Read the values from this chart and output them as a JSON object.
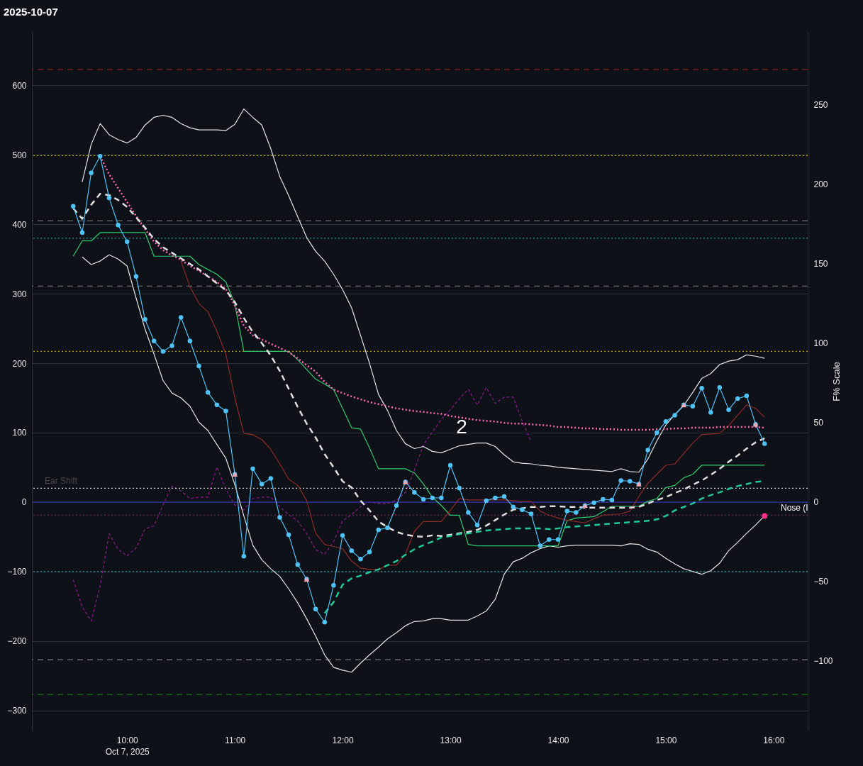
{
  "chart_data": {
    "type": "line",
    "title": "2025-10-07",
    "y2label": "F% Scale",
    "x": [
      "2025-10-07T09:30",
      "2025-10-07T09:35",
      "2025-10-07T09:40",
      "2025-10-07T09:45",
      "2025-10-07T09:50",
      "2025-10-07T09:55",
      "2025-10-07T10:00",
      "2025-10-07T10:05",
      "2025-10-07T10:10",
      "2025-10-07T10:15",
      "2025-10-07T10:20",
      "2025-10-07T10:25",
      "2025-10-07T10:30",
      "2025-10-07T10:35",
      "2025-10-07T10:40",
      "2025-10-07T10:45",
      "2025-10-07T10:50",
      "2025-10-07T10:55",
      "2025-10-07T11:00",
      "2025-10-07T11:05",
      "2025-10-07T11:10",
      "2025-10-07T11:15",
      "2025-10-07T11:20",
      "2025-10-07T11:25",
      "2025-10-07T11:30",
      "2025-10-07T11:35",
      "2025-10-07T11:40",
      "2025-10-07T11:45",
      "2025-10-07T11:50",
      "2025-10-07T11:55",
      "2025-10-07T12:00",
      "2025-10-07T12:05",
      "2025-10-07T12:10",
      "2025-10-07T12:15",
      "2025-10-07T12:20",
      "2025-10-07T12:25",
      "2025-10-07T12:30",
      "2025-10-07T12:35",
      "2025-10-07T12:40",
      "2025-10-07T12:45",
      "2025-10-07T12:50",
      "2025-10-07T12:55",
      "2025-10-07T13:00",
      "2025-10-07T13:05",
      "2025-10-07T13:10",
      "2025-10-07T13:15",
      "2025-10-07T13:20",
      "2025-10-07T13:25",
      "2025-10-07T13:30",
      "2025-10-07T13:35",
      "2025-10-07T13:40",
      "2025-10-07T13:45",
      "2025-10-07T13:50",
      "2025-10-07T13:55",
      "2025-10-07T14:00",
      "2025-10-07T14:05",
      "2025-10-07T14:10",
      "2025-10-07T14:15",
      "2025-10-07T14:20",
      "2025-10-07T14:25",
      "2025-10-07T14:30",
      "2025-10-07T14:35",
      "2025-10-07T14:40",
      "2025-10-07T14:45",
      "2025-10-07T14:50",
      "2025-10-07T14:55",
      "2025-10-07T15:00",
      "2025-10-07T15:05",
      "2025-10-07T15:10",
      "2025-10-07T15:15",
      "2025-10-07T15:20",
      "2025-10-07T15:25",
      "2025-10-07T15:30",
      "2025-10-07T15:35",
      "2025-10-07T15:40",
      "2025-10-07T15:45",
      "2025-10-07T15:50",
      "2025-10-07T15:55"
    ],
    "xlim": [
      "2025-10-07T09:07",
      "2025-10-07T16:19"
    ],
    "xticks": [
      {
        "value": "2025-10-07T10:00",
        "label": "10:00\nOct 7, 2025"
      },
      {
        "value": "2025-10-07T11:00",
        "label": "11:00"
      },
      {
        "value": "2025-10-07T12:00",
        "label": "12:00"
      },
      {
        "value": "2025-10-07T13:00",
        "label": "13:00"
      },
      {
        "value": "2025-10-07T14:00",
        "label": "14:00"
      },
      {
        "value": "2025-10-07T15:00",
        "label": "15:00"
      },
      {
        "value": "2025-10-07T16:00",
        "label": "16:00"
      }
    ],
    "ylim": [
      -329,
      677
    ],
    "yticks": [
      -300,
      -200,
      -100,
      0,
      100,
      200,
      300,
      400,
      500,
      600
    ],
    "y2lim": [
      -144,
      296
    ],
    "y2ticks": [
      -100,
      -50,
      0,
      50,
      100,
      150,
      200,
      250
    ],
    "grid": "y",
    "series": [
      {
        "color": "#e6e6e6",
        "values": [
          null,
          461,
          515,
          545,
          529,
          522,
          517,
          525,
          543,
          554,
          557,
          554,
          545,
          539,
          536,
          536,
          536,
          535,
          544,
          566,
          554,
          543,
          509,
          469,
          441,
          411,
          381,
          361,
          347,
          328,
          306,
          280,
          240,
          200,
          155,
          132,
          103,
          84,
          77,
          80,
          73,
          71,
          76,
          81,
          83,
          85,
          85,
          80,
          68,
          58,
          56,
          55,
          53,
          52,
          50,
          49,
          48,
          47,
          46,
          45,
          44,
          48,
          44,
          43,
          62,
          88,
          111,
          126,
          139,
          158,
          178,
          185,
          198,
          203,
          205,
          212,
          210,
          207
        ]
      },
      {
        "color": "#e6e6e6",
        "values": [
          null,
          353,
          342,
          347,
          356,
          350,
          340,
          294,
          249,
          213,
          175,
          157,
          150,
          138,
          115,
          103,
          83,
          63,
          25,
          -20,
          -62,
          -83,
          -96,
          -107,
          -125,
          -145,
          -168,
          -193,
          -220,
          -238,
          -242,
          -245,
          -232,
          -220,
          -209,
          -197,
          -188,
          -178,
          -172,
          -171,
          -168,
          -168,
          -170,
          -170,
          -170,
          -164,
          -157,
          -140,
          -104,
          -86,
          -81,
          -73,
          -67,
          -63,
          -65,
          -63,
          -62,
          -62,
          -62,
          -62,
          -62,
          -63,
          -60,
          -61,
          -68,
          -72,
          -81,
          -89,
          -96,
          -100,
          -104,
          -99,
          -88,
          -70,
          -58,
          -45,
          -33,
          -20
        ]
      },
      {
        "color": "#8a1c8c",
        "axis": "y2",
        "line_style": "dashed",
        "values": [
          -49,
          -66,
          -75,
          -53,
          -20,
          -30,
          -34,
          -29,
          -17,
          -15,
          -2,
          10,
          7,
          2,
          3,
          3,
          22,
          8,
          -2,
          -5,
          2,
          3,
          3,
          -3,
          -8,
          -12,
          -20,
          -30,
          -33,
          -25,
          -12,
          -8,
          -3,
          0,
          -1,
          -1,
          1,
          6,
          20,
          36,
          44,
          52,
          58,
          65,
          71,
          61,
          72,
          62,
          66,
          66,
          51,
          38,
          null,
          null,
          null,
          null,
          null,
          null,
          null,
          null,
          null,
          null,
          null,
          null,
          null,
          null,
          null,
          null,
          null,
          null,
          null,
          null,
          null,
          null,
          null,
          null,
          null,
          null
        ]
      },
      {
        "color": "#2ecc71",
        "values": [
          354,
          376,
          376,
          388,
          388,
          388,
          388,
          388,
          388,
          354,
          354,
          354,
          354,
          354,
          342,
          335,
          328,
          317,
          285,
          217,
          217,
          217,
          217,
          217,
          217,
          205,
          191,
          177,
          170,
          162,
          135,
          107,
          105,
          78,
          48,
          48,
          48,
          48,
          42,
          26,
          7,
          -5,
          -19,
          -19,
          -61,
          -63,
          -63,
          -63,
          -63,
          -63,
          -63,
          -63,
          -63,
          -63,
          -63,
          -27,
          -23,
          -22,
          -21,
          -14,
          -6,
          -6,
          -6,
          -6,
          1,
          5,
          21,
          24,
          35,
          40,
          53,
          53,
          53,
          53,
          53,
          53,
          53,
          53
        ]
      },
      {
        "color": "#8e2a2a",
        "values": [
          null,
          null,
          null,
          null,
          null,
          null,
          null,
          null,
          null,
          null,
          null,
          null,
          347,
          310,
          286,
          274,
          246,
          213,
          150,
          99,
          97,
          90,
          76,
          55,
          33,
          24,
          2,
          -45,
          -61,
          -64,
          -67,
          -85,
          -95,
          -97,
          -97,
          -91,
          -91,
          -75,
          -42,
          -28,
          -28,
          -28,
          -12,
          5,
          3,
          3,
          3,
          3,
          3,
          2,
          1,
          1,
          -13,
          -19,
          -23,
          -26,
          -28,
          -30,
          -24,
          -19,
          -18,
          -17,
          -13,
          8,
          27,
          40,
          53,
          55,
          70,
          85,
          97,
          98,
          99,
          110,
          125,
          140,
          135,
          122
        ]
      },
      {
        "color": "#ff69b4",
        "line_style": "dotted",
        "values": [
          null,
          null,
          null,
          498,
          472,
          452,
          432,
          412,
          393,
          375,
          363,
          355,
          349,
          340,
          333,
          325,
          317,
          307,
          283,
          254,
          240,
          234,
          228,
          222,
          216,
          207,
          197,
          188,
          173,
          162,
          157,
          152,
          148,
          144,
          141,
          138,
          135,
          133,
          131,
          130,
          128,
          127,
          124,
          122,
          120,
          118,
          117,
          116,
          114,
          113,
          113,
          112,
          111,
          110,
          108,
          108,
          107,
          106,
          106,
          105,
          105,
          104,
          104,
          104,
          104,
          105,
          105,
          106,
          106,
          107,
          107,
          107,
          108,
          108,
          108,
          108,
          108,
          107
        ]
      },
      {
        "color": "#e0e0e0",
        "line_style": "dashed",
        "values": [
          423,
          408,
          428,
          444,
          442,
          435,
          425,
          410,
          395,
          379,
          367,
          359,
          351,
          343,
          335,
          325,
          315,
          305,
          288,
          265,
          245,
          229,
          211,
          189,
          163,
          137,
          113,
          93,
          69,
          50,
          30,
          21,
          2,
          -12,
          -28,
          -36,
          -43,
          -47,
          -49,
          -50,
          -48,
          -49,
          -47,
          -45,
          -43,
          -40,
          -34,
          -26,
          -18,
          -11,
          -9,
          -7,
          -7,
          -6,
          -6,
          -7,
          -7,
          -8,
          -8,
          -8,
          -8,
          -8,
          -8,
          -7,
          -2,
          3,
          7,
          13,
          18,
          25,
          31,
          39,
          48,
          58,
          67,
          77,
          86,
          92
        ]
      },
      {
        "color": "#20c997",
        "line_style": "dashed",
        "values": [
          null,
          null,
          null,
          null,
          null,
          null,
          null,
          null,
          null,
          null,
          null,
          null,
          null,
          null,
          null,
          null,
          null,
          null,
          null,
          null,
          null,
          null,
          null,
          null,
          null,
          null,
          null,
          null,
          -160,
          -144,
          -119,
          -110,
          -106,
          -101,
          -97,
          -91,
          -85,
          -76,
          -68,
          -62,
          -57,
          -51,
          -49,
          -46,
          -45,
          -43,
          -41,
          -40,
          -39,
          -38,
          -38,
          -38,
          -38,
          -39,
          -38,
          -36,
          -35,
          -34,
          -33,
          -32,
          -31,
          -30,
          -29,
          -28,
          -27,
          -25,
          -20,
          -12,
          -7,
          -2,
          5,
          10,
          14,
          19,
          23,
          26,
          29,
          30
        ]
      },
      {
        "color": "#4fc3f7",
        "marker": "circle",
        "values": [
          426,
          388,
          474,
          498,
          438,
          399,
          375,
          325,
          263,
          232,
          217,
          225,
          266,
          232,
          196,
          158,
          140,
          131,
          40,
          -78,
          48,
          26,
          34,
          -22,
          -47,
          -90,
          -111,
          -154,
          -173,
          -120,
          -48,
          -70,
          -82,
          -72,
          -40,
          -37,
          -5,
          29,
          14,
          4,
          6,
          6,
          53,
          20,
          -15,
          -33,
          2,
          6,
          8,
          -7,
          -11,
          -17,
          -63,
          -54,
          -54,
          -13,
          -15,
          -5,
          -1,
          4,
          3,
          31,
          30,
          26,
          75,
          100,
          116,
          125,
          140,
          138,
          164,
          129,
          165,
          133,
          149,
          153,
          112,
          84
        ]
      },
      {
        "type": "scatter",
        "color": "#f4a7b9",
        "marker": "triangle",
        "x": [
          "2025-10-07T11:00",
          "2025-10-07T11:40",
          "2025-10-07T12:35",
          "2025-10-07T14:15",
          "2025-10-07T14:45",
          "2025-10-07T15:10",
          "2025-10-07T15:50"
        ],
        "values": [
          40,
          -111,
          29,
          -5,
          26,
          140,
          112
        ]
      },
      {
        "type": "scatter",
        "color": "#ff2d8a",
        "marker": "circle",
        "x": [
          "2025-10-07T15:55"
        ],
        "values": [
          -20
        ]
      }
    ],
    "ref_lines": [
      {
        "axis": "y",
        "value": 623,
        "color": "#8b1c1c",
        "line_style": "dashed"
      },
      {
        "axis": "y",
        "value": 499,
        "color": "#b5a000",
        "line_style": "dotted"
      },
      {
        "axis": "y",
        "value": 405,
        "color": "#6b6b6b",
        "line_style": "dashed"
      },
      {
        "axis": "y",
        "value": 380,
        "color": "#1f9e9e",
        "line_style": "dotted"
      },
      {
        "axis": "y",
        "value": 311,
        "color": "#6b6b6b",
        "line_style": "dashed"
      },
      {
        "axis": "y",
        "value": 217,
        "color": "#b5a000",
        "line_style": "dotted"
      },
      {
        "axis": "y",
        "value": 20,
        "color": "#d8d8d8",
        "line_style": "dotted",
        "label": "Ear Shift"
      },
      {
        "axis": "y",
        "value": 0,
        "color": "#2a2aa8",
        "line_style": "solid"
      },
      {
        "axis": "y",
        "value": -19,
        "color": "#7a2060",
        "line_style": "dotted"
      },
      {
        "axis": "y",
        "value": -100,
        "color": "#1f9e9e",
        "line_style": "dotted"
      },
      {
        "axis": "y",
        "value": -227,
        "color": "#7a7a7a",
        "line_style": "dashed"
      },
      {
        "axis": "y",
        "value": -277,
        "color": "#1f6e1f",
        "line_style": "dashed"
      }
    ],
    "annotations": [
      "2",
      "Nose (I"
    ]
  }
}
